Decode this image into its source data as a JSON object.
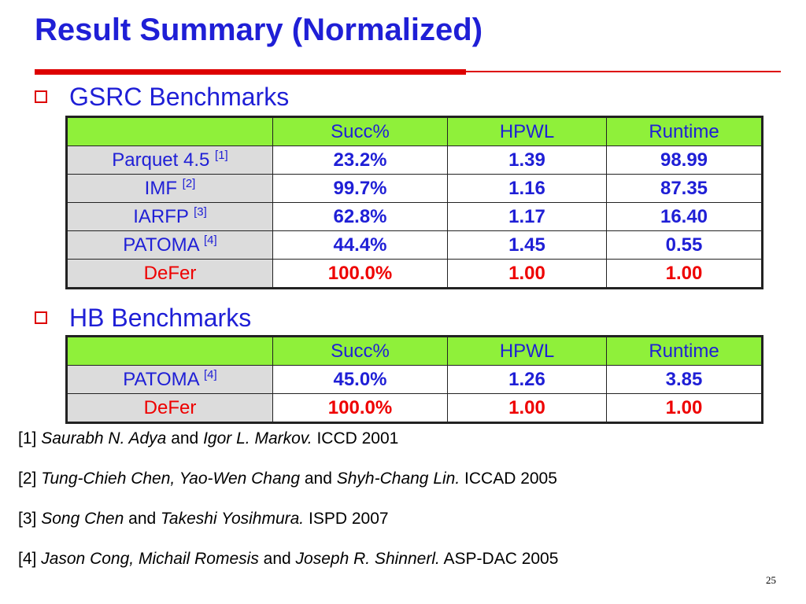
{
  "slide": {
    "title": "Result Summary (Normalized)",
    "page_number": "25"
  },
  "gsrc": {
    "heading": "GSRC Benchmarks",
    "columns": [
      "",
      "Succ%",
      "HPWL",
      "Runtime"
    ],
    "rows": [
      {
        "method": "Parquet 4.5",
        "ref": "[1]",
        "succ": "23.2%",
        "hpwl": "1.39",
        "runtime": "98.99"
      },
      {
        "method": "IMF",
        "ref": "[2]",
        "succ": "99.7%",
        "hpwl": "1.16",
        "runtime": "87.35"
      },
      {
        "method": "IARFP",
        "ref": "[3]",
        "succ": "62.8%",
        "hpwl": "1.17",
        "runtime": "16.40"
      },
      {
        "method": "PATOMA",
        "ref": "[4]",
        "succ": "44.4%",
        "hpwl": "1.45",
        "runtime": "0.55"
      },
      {
        "method": "DeFer",
        "ref": "",
        "succ": "100.0%",
        "hpwl": "1.00",
        "runtime": "1.00"
      }
    ]
  },
  "hb": {
    "heading": "HB Benchmarks",
    "columns": [
      "",
      "Succ%",
      "HPWL",
      "Runtime"
    ],
    "rows": [
      {
        "method": "PATOMA",
        "ref": "[4]",
        "succ": "45.0%",
        "hpwl": "1.26",
        "runtime": "3.85"
      },
      {
        "method": "DeFer",
        "ref": "",
        "succ": "100.0%",
        "hpwl": "1.00",
        "runtime": "1.00"
      }
    ]
  },
  "references": [
    {
      "num": "[1]",
      "authors_a": "Saurabh N. Adya",
      "and": "and",
      "authors_b": "Igor L. Markov.",
      "venue": "ICCD 2001"
    },
    {
      "num": "[2]",
      "authors_a": "Tung-Chieh Chen, Yao-Wen Chang",
      "and": "and",
      "authors_b": "Shyh-Chang Lin.",
      "venue": "ICCAD 2005"
    },
    {
      "num": "[3]",
      "authors_a": "Song Chen",
      "and": "and",
      "authors_b": "Takeshi Yosihmura.",
      "venue": "ISPD 2007"
    },
    {
      "num": "[4]",
      "authors_a": "Jason Cong, Michail Romesis",
      "and": "and",
      "authors_b": "Joseph R. Shinnerl.",
      "venue": "ASP-DAC 2005"
    }
  ],
  "colors": {
    "title": "#1f1fd6",
    "accent_red": "#dd0000",
    "header_green": "#8ff03a",
    "method_gray": "#dcdcdc"
  }
}
